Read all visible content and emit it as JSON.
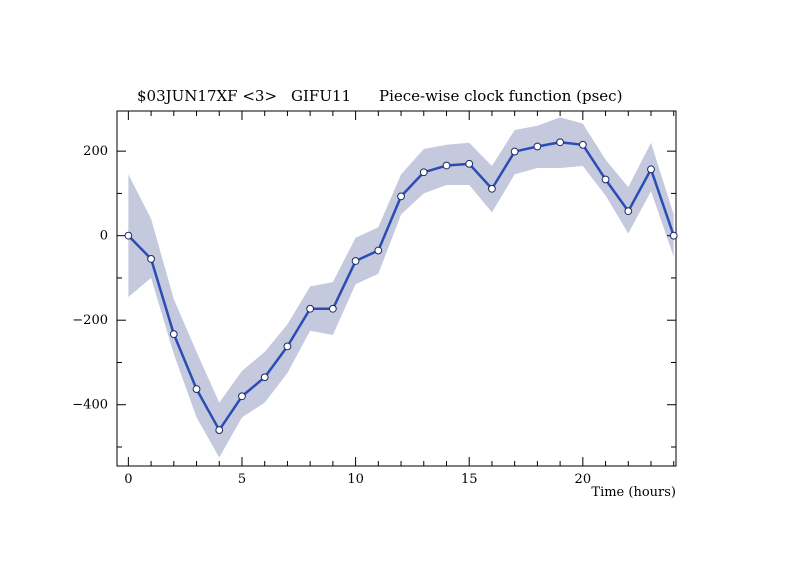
{
  "chart_data": {
    "type": "line",
    "title_parts": [
      "$03JUN17XF <3>",
      "GIFU11",
      "Piece-wise clock function (psec)"
    ],
    "xlabel": "Time (hours)",
    "ylabel": "",
    "xlim": [
      -0.5,
      24.1
    ],
    "ylim": [
      -545,
      295
    ],
    "xticks": [
      0,
      5,
      10,
      15,
      20
    ],
    "yticks": [
      -400,
      -200,
      0,
      200
    ],
    "xticks_minor": [
      1,
      2,
      3,
      4,
      6,
      7,
      8,
      9,
      11,
      12,
      13,
      14,
      16,
      17,
      18,
      19,
      21,
      22,
      23,
      24
    ],
    "yticks_minor": [
      -500,
      -300,
      -100,
      100
    ],
    "grid": false,
    "line_color": "#2a4db5",
    "band_color": "#c5c9dd",
    "series": [
      {
        "x": [
          0,
          1,
          2,
          3,
          4,
          5,
          6,
          7,
          8,
          9,
          10,
          11,
          12,
          13,
          14,
          15,
          16,
          17,
          18,
          19,
          20,
          21,
          22,
          23,
          24
        ],
        "y": [
          0,
          -55,
          -233,
          -363,
          -460,
          -380,
          -335,
          -262,
          -173,
          -173,
          -60,
          -35,
          93,
          150,
          166,
          170,
          111,
          199,
          211,
          221,
          215,
          133,
          58,
          157,
          0
        ],
        "upper": [
          145,
          40,
          -150,
          -275,
          -395,
          -320,
          -275,
          -210,
          -120,
          -110,
          -5,
          20,
          145,
          205,
          215,
          220,
          165,
          250,
          260,
          280,
          265,
          180,
          115,
          220,
          50
        ],
        "lower": [
          -145,
          -100,
          -280,
          -430,
          -525,
          -430,
          -395,
          -325,
          -225,
          -235,
          -115,
          -90,
          50,
          100,
          120,
          120,
          55,
          145,
          160,
          160,
          165,
          95,
          5,
          105,
          -50
        ]
      }
    ]
  }
}
